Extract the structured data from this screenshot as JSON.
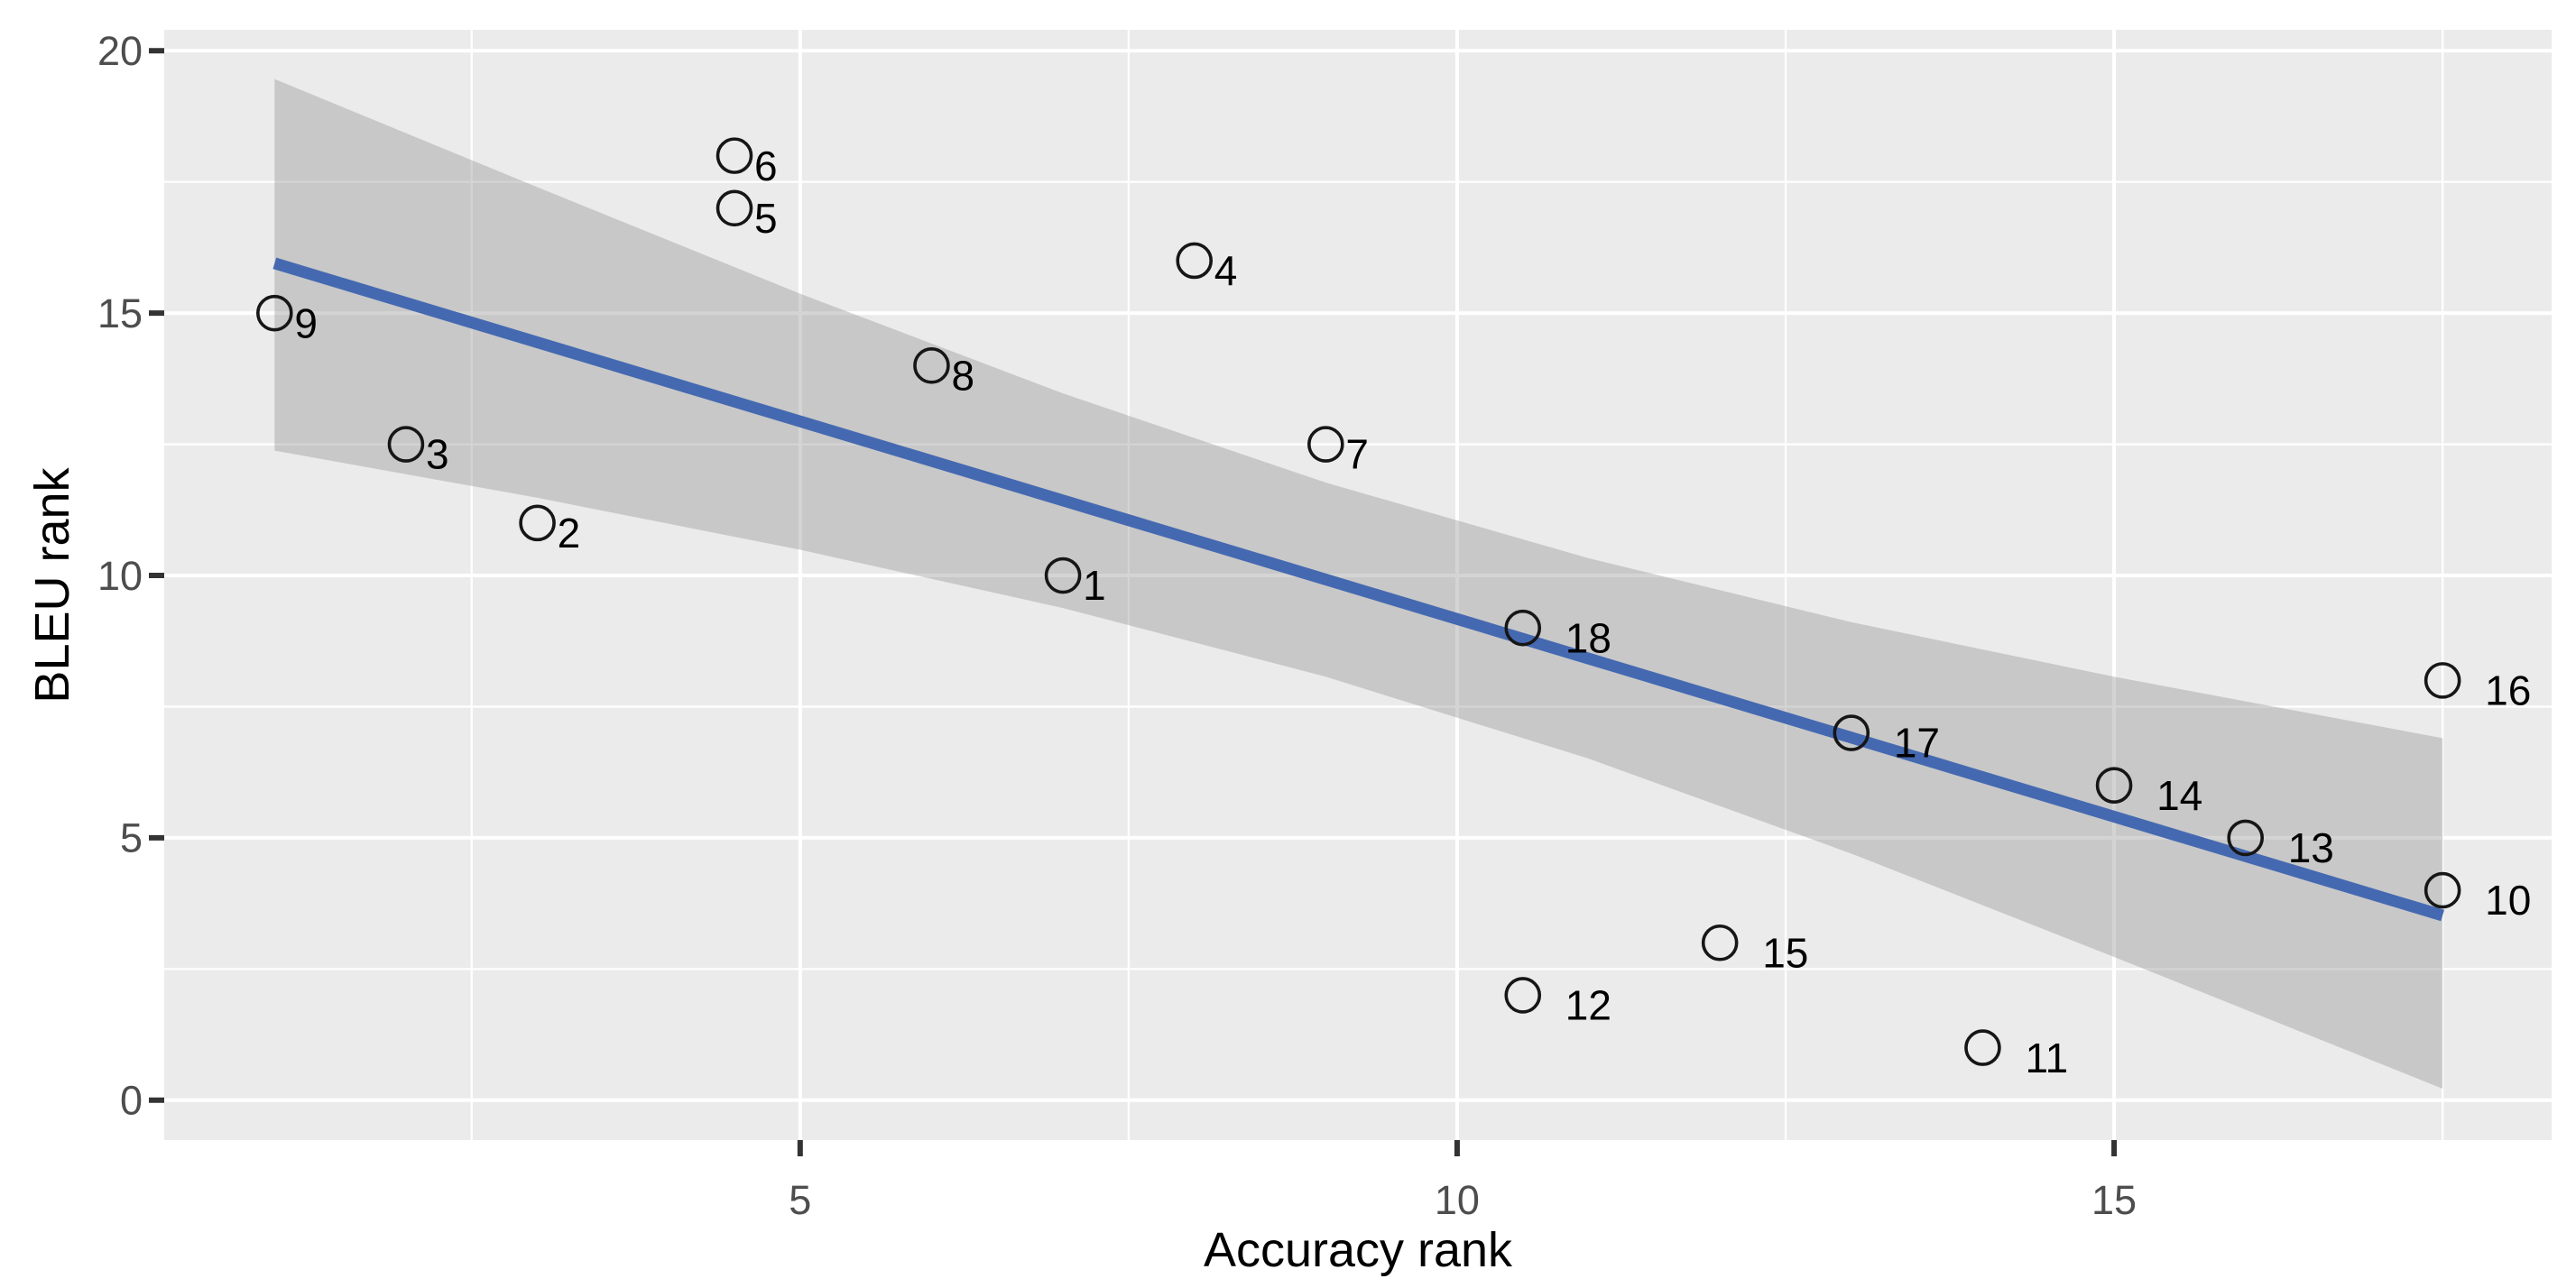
{
  "chart_data": {
    "type": "scatter",
    "title": "",
    "xlabel": "Accuracy rank",
    "ylabel": "BLEU rank",
    "xlim": [
      0.16,
      18.33
    ],
    "ylim": [
      -0.76,
      20.4
    ],
    "x_ticks": [
      5,
      10,
      15
    ],
    "x_minor_ticks": [
      2.5,
      7.5,
      12.5,
      17.5
    ],
    "y_ticks": [
      0,
      5,
      10,
      15,
      20
    ],
    "y_minor_ticks": [
      2.5,
      7.5,
      12.5,
      17.5
    ],
    "grid": true,
    "legend": "none",
    "points": [
      {
        "label": "1",
        "x": 7,
        "y": 10
      },
      {
        "label": "2",
        "x": 3,
        "y": 11
      },
      {
        "label": "3",
        "x": 2,
        "y": 12.5
      },
      {
        "label": "4",
        "x": 8,
        "y": 16
      },
      {
        "label": "5",
        "x": 4.5,
        "y": 17
      },
      {
        "label": "6",
        "x": 4.5,
        "y": 18
      },
      {
        "label": "7",
        "x": 9,
        "y": 12.5
      },
      {
        "label": "8",
        "x": 6,
        "y": 14
      },
      {
        "label": "9",
        "x": 1,
        "y": 15
      },
      {
        "label": "10",
        "x": 17.5,
        "y": 4
      },
      {
        "label": "11",
        "x": 14,
        "y": 1
      },
      {
        "label": "12",
        "x": 10.5,
        "y": 2
      },
      {
        "label": "13",
        "x": 16,
        "y": 5
      },
      {
        "label": "14",
        "x": 15,
        "y": 6
      },
      {
        "label": "15",
        "x": 12,
        "y": 3
      },
      {
        "label": "16",
        "x": 17.5,
        "y": 8
      },
      {
        "label": "17",
        "x": 13,
        "y": 7
      },
      {
        "label": "18",
        "x": 10.5,
        "y": 9
      }
    ],
    "regression_line": {
      "x1": 1,
      "y1": 15.95,
      "x2": 17.5,
      "y2": 3.52
    },
    "confidence_band": [
      {
        "x": 1,
        "lower": 12.38,
        "upper": 19.46
      },
      {
        "x": 3,
        "lower": 11.48,
        "upper": 17.4
      },
      {
        "x": 5,
        "lower": 10.49,
        "upper": 15.37
      },
      {
        "x": 7,
        "lower": 9.38,
        "upper": 13.47
      },
      {
        "x": 9,
        "lower": 8.07,
        "upper": 11.77
      },
      {
        "x": 11,
        "lower": 6.51,
        "upper": 10.33
      },
      {
        "x": 13,
        "lower": 4.7,
        "upper": 9.11
      },
      {
        "x": 15,
        "lower": 2.73,
        "upper": 8.07
      },
      {
        "x": 17.5,
        "lower": 0.22,
        "upper": 6.9
      }
    ],
    "colors": {
      "panel_bg": "#EBEBEB",
      "grid": "#FFFFFF",
      "band_fill": "#999999",
      "band_opacity": 0.42,
      "line": "#4569B1",
      "point_stroke": "#161616",
      "tick_mark": "#333333",
      "tick_label": "#4D4D4D",
      "axis_title": "#000000"
    }
  }
}
